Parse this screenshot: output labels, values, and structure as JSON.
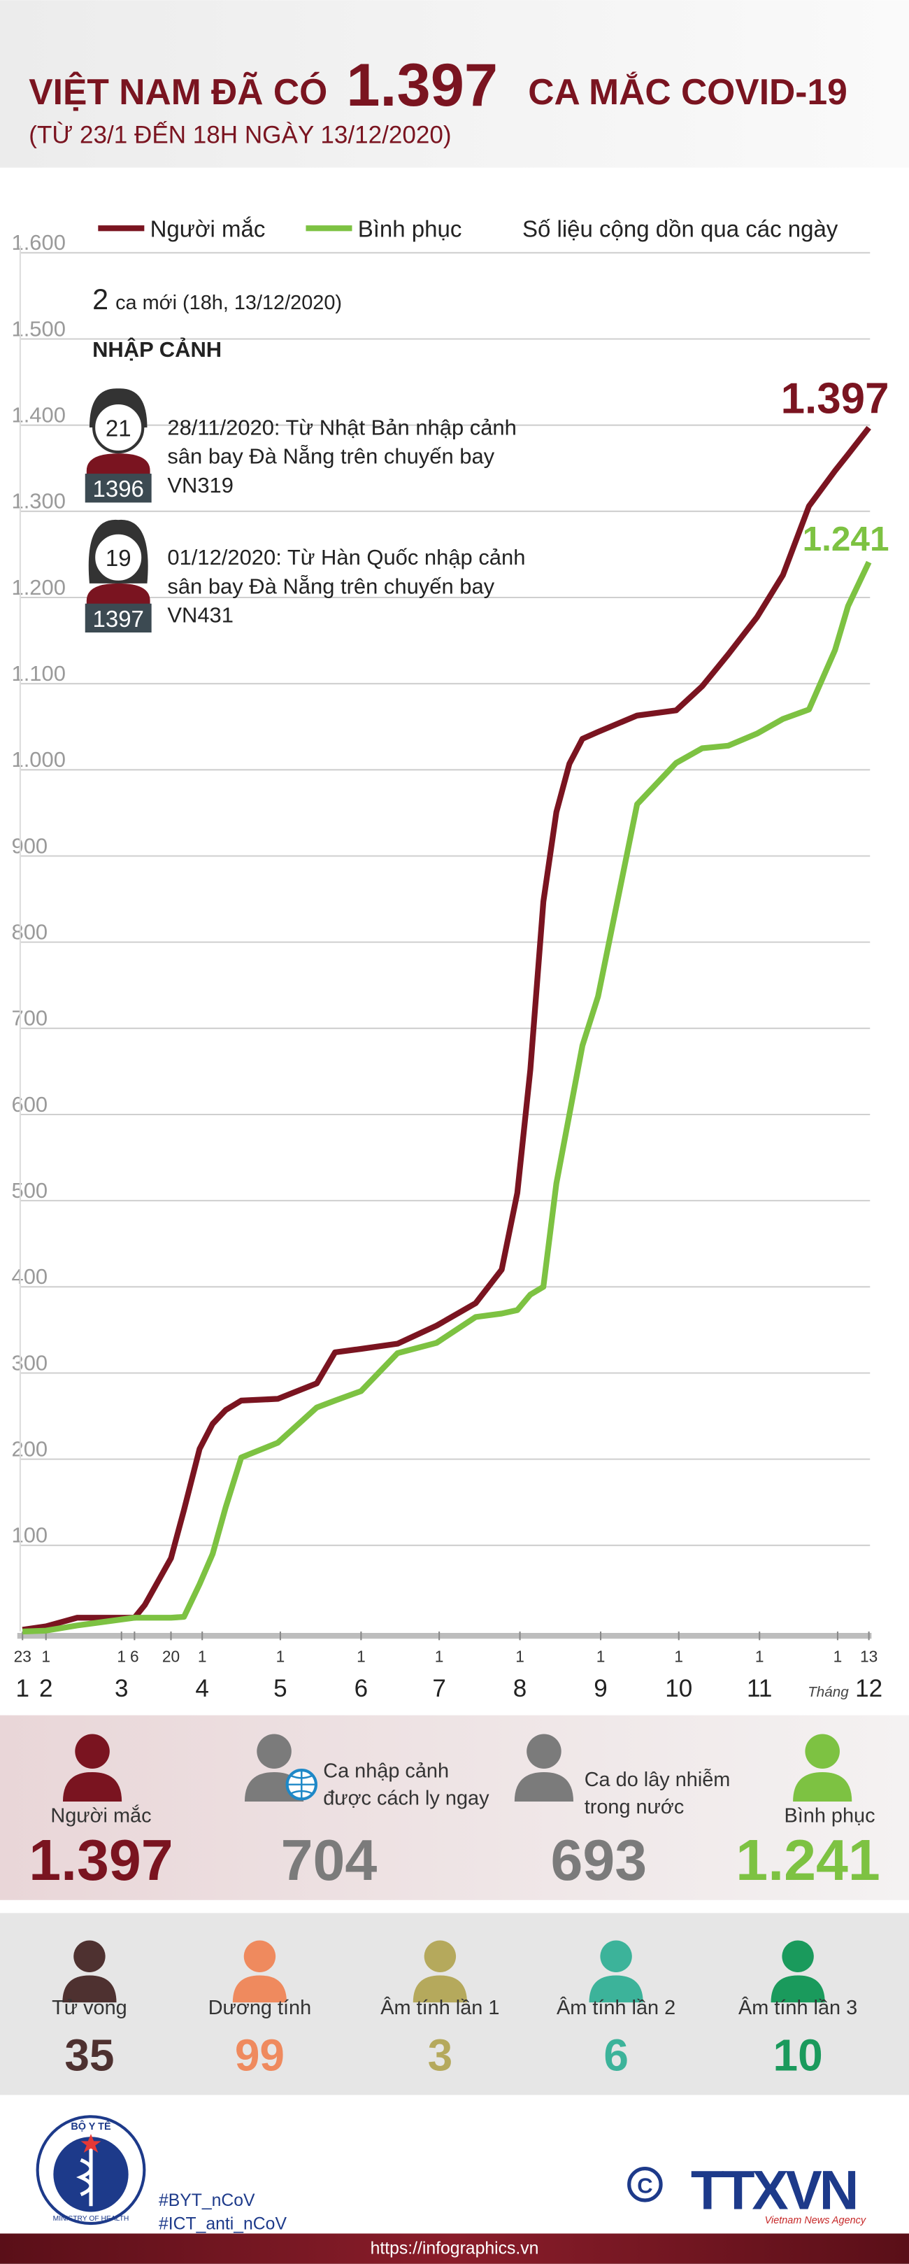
{
  "header": {
    "title_before": "VIỆT NAM ĐÃ CÓ",
    "title_number": "1.397",
    "title_after": "CA MẮC COVID-19",
    "subtitle": "(TỪ 23/1 ĐẾN 18H NGÀY 13/12/2020)"
  },
  "chart_data": {
    "type": "line",
    "note": "Số liệu cộng dồn qua các ngày",
    "x_label": "Tháng",
    "x": [
      "2020-01-23",
      "2020-02-01",
      "2020-02-13",
      "2020-03-06",
      "2020-03-10",
      "2020-03-20",
      "2020-03-25",
      "2020-03-31",
      "2020-04-05",
      "2020-04-10",
      "2020-04-16",
      "2020-04-30",
      "2020-05-15",
      "2020-05-22",
      "2020-06-01",
      "2020-06-15",
      "2020-06-30",
      "2020-07-15",
      "2020-07-25",
      "2020-07-31",
      "2020-08-05",
      "2020-08-10",
      "2020-08-15",
      "2020-08-20",
      "2020-08-25",
      "2020-08-31",
      "2020-09-15",
      "2020-09-30",
      "2020-10-10",
      "2020-10-20",
      "2020-10-31",
      "2020-11-10",
      "2020-11-20",
      "2020-11-30",
      "2020-12-05",
      "2020-12-13"
    ],
    "series": [
      {
        "name": "Người mắc",
        "color": "#7a1420",
        "values": [
          2,
          6,
          16,
          16,
          31,
          85,
          141,
          212,
          241,
          257,
          268,
          270,
          288,
          324,
          328,
          334,
          355,
          381,
          420,
          509,
          652,
          847,
          951,
          1007,
          1036,
          1044,
          1063,
          1069,
          1097,
          1134,
          1177,
          1226,
          1306,
          1347,
          1366,
          1397
        ],
        "value_labels": [
          null,
          null,
          null,
          null,
          null,
          null,
          null,
          null,
          null,
          null,
          null,
          null,
          null,
          null,
          null,
          null,
          null,
          null,
          null,
          null,
          null,
          null,
          null,
          null,
          null,
          null,
          null,
          null,
          null,
          null,
          null,
          null,
          null,
          null,
          null,
          "1.397"
        ]
      },
      {
        "name": "Bình phục",
        "color": "#7dc242",
        "values": [
          0,
          1,
          7,
          16,
          16,
          16,
          17,
          55,
          90,
          144,
          202,
          219,
          260,
          268,
          279,
          323,
          335,
          365,
          369,
          373,
          391,
          400,
          520,
          600,
          680,
          737,
          960,
          1008,
          1025,
          1028,
          1042,
          1059,
          1070,
          1139,
          1190,
          1241
        ],
        "value_labels": [
          null,
          null,
          null,
          null,
          null,
          null,
          null,
          null,
          null,
          null,
          null,
          null,
          null,
          null,
          null,
          null,
          null,
          null,
          null,
          null,
          null,
          null,
          null,
          null,
          null,
          null,
          null,
          null,
          null,
          null,
          null,
          null,
          null,
          null,
          null,
          "1.241"
        ]
      }
    ],
    "xlim": [
      "2020-01-21",
      "2020-12-14"
    ],
    "xticks": [
      {
        "value": "2020-01-23",
        "label": "23"
      },
      {
        "value": "2020-02-01",
        "label": "1"
      },
      {
        "value": "2020-03-01",
        "label": "1"
      },
      {
        "value": "2020-03-06",
        "label": "6"
      },
      {
        "value": "2020-03-20",
        "label": "20"
      },
      {
        "value": "2020-04-01",
        "label": "1"
      },
      {
        "value": "2020-05-01",
        "label": "1"
      },
      {
        "value": "2020-06-01",
        "label": "1"
      },
      {
        "value": "2020-07-01",
        "label": "1"
      },
      {
        "value": "2020-08-01",
        "label": "1"
      },
      {
        "value": "2020-09-01",
        "label": "1"
      },
      {
        "value": "2020-10-01",
        "label": "1"
      },
      {
        "value": "2020-11-01",
        "label": "1"
      },
      {
        "value": "2020-12-01",
        "label": "1"
      },
      {
        "value": "2020-12-13",
        "label": "13"
      }
    ],
    "month_ticks": [
      {
        "value": "2020-01-23",
        "label": "1"
      },
      {
        "value": "2020-02-01",
        "label": "2"
      },
      {
        "value": "2020-03-01",
        "label": "3"
      },
      {
        "value": "2020-04-01",
        "label": "4"
      },
      {
        "value": "2020-05-01",
        "label": "5"
      },
      {
        "value": "2020-06-01",
        "label": "6"
      },
      {
        "value": "2020-07-01",
        "label": "7"
      },
      {
        "value": "2020-08-01",
        "label": "8"
      },
      {
        "value": "2020-09-01",
        "label": "9"
      },
      {
        "value": "2020-10-01",
        "label": "10"
      },
      {
        "value": "2020-11-01",
        "label": "11"
      },
      {
        "value": "2020-12-13",
        "label": "12"
      }
    ],
    "ylim": [
      0,
      1600
    ],
    "yticks": [
      100,
      200,
      300,
      400,
      500,
      600,
      700,
      800,
      900,
      {
        "value": 1000,
        "label": "1.000"
      },
      {
        "value": 1100,
        "label": "1.100"
      },
      {
        "value": 1200,
        "label": "1.200"
      },
      {
        "value": 1300,
        "label": "1.300"
      },
      {
        "value": 1400,
        "label": "1.400"
      },
      {
        "value": 1500,
        "label": "1.500"
      },
      {
        "value": 1600,
        "label": "1.600"
      }
    ],
    "grid": true
  },
  "annotations": {
    "new_count": "2",
    "new_text": "ca mới (18h, 13/12/2020)",
    "section": "NHẬP CẢNH",
    "cases": [
      {
        "age": "21",
        "id": "1396",
        "color": "#7a1420",
        "lines": [
          "28/11/2020: Từ Nhật Bản nhập cảnh",
          "sân bay Đà Nẵng trên chuyến bay",
          "VN319"
        ]
      },
      {
        "age": "19",
        "id": "1397",
        "color": "#7a1420",
        "lines": [
          "01/12/2020: Từ Hàn Quốc nhập cảnh",
          "sân bay Đà Nẵng trên chuyến bay",
          "VN431"
        ]
      }
    ]
  },
  "summary": [
    {
      "label": [
        "Người mắc"
      ],
      "value": "1.397",
      "color": "#7a1420"
    },
    {
      "label": [
        "Ca nhập cảnh",
        "được cách ly ngay"
      ],
      "value": "704",
      "color": "#7b7b7b"
    },
    {
      "label": [
        "Ca do lây nhiễm",
        "trong nước"
      ],
      "value": "693",
      "color": "#7b7b7b"
    },
    {
      "label": [
        "Bình phục"
      ],
      "value": "1.241",
      "color": "#7dc242"
    }
  ],
  "status": [
    {
      "label": "Tử vong",
      "value": "35",
      "color": "#4e3130"
    },
    {
      "label": "Dương tính",
      "value": "99",
      "color": "#ef8a5e"
    },
    {
      "label": "Âm tính lần 1",
      "value": "3",
      "color": "#b5a95c"
    },
    {
      "label": "Âm tính lần 2",
      "value": "6",
      "color": "#3cb39a"
    },
    {
      "label": "Âm tính lần 3",
      "value": "10",
      "color": "#1a9a5c"
    }
  ],
  "footer": {
    "ministry": "BỘ Y TẾ",
    "ministry_en": "MINISTRY OF HEALTH",
    "hashtags": [
      "#BYT_nCoV",
      "#ICT_anti_nCoV"
    ],
    "agency": "TTXVN",
    "agency_en": "Vietnam News Agency",
    "url": "https://infographics.vn"
  }
}
